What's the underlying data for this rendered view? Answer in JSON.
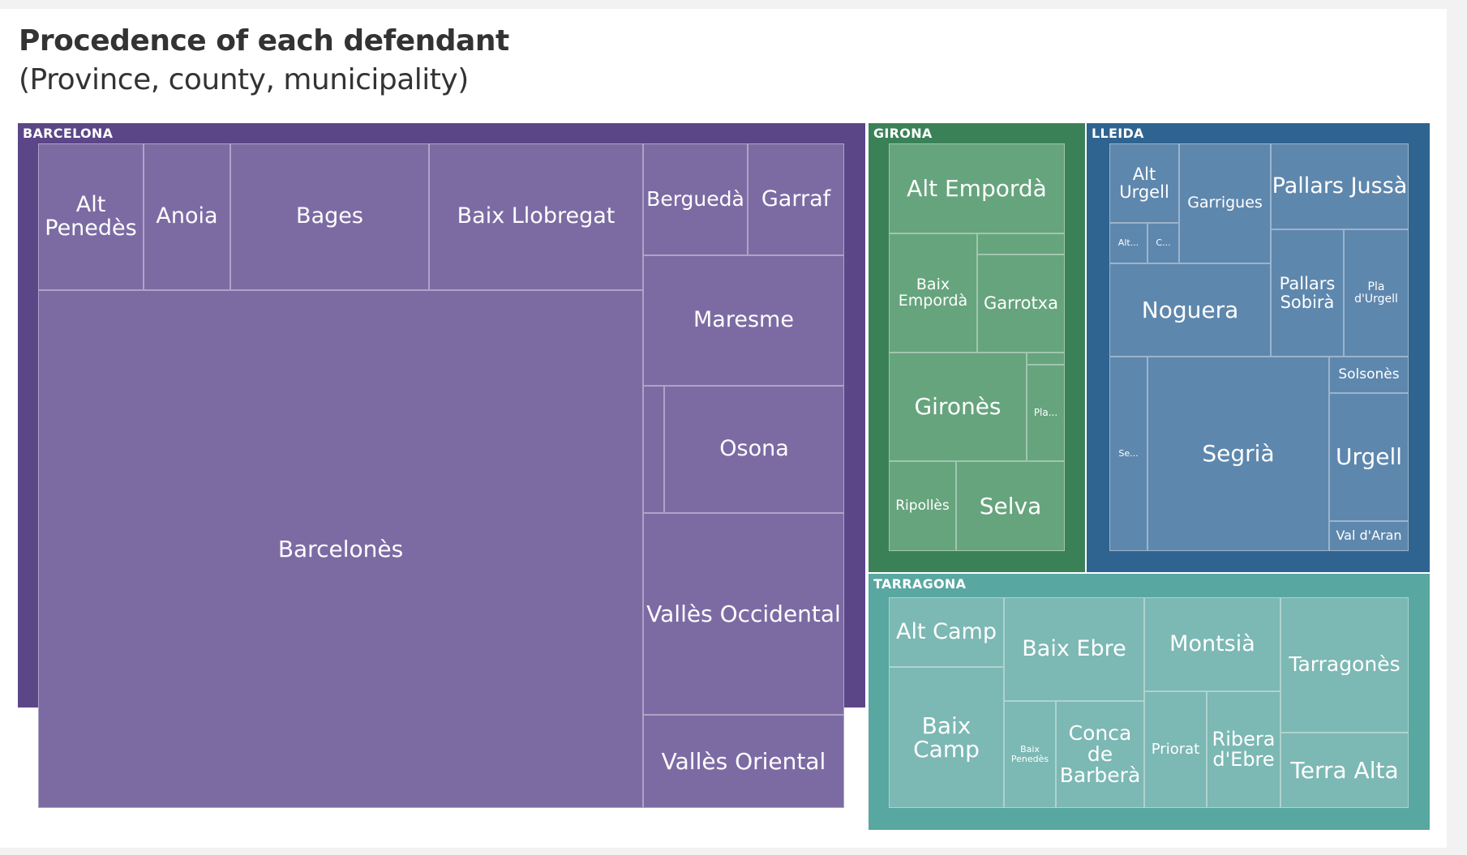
{
  "title": "Procedence of each defendant",
  "subtitle": "(Province, county, municipality)",
  "chart_data": {
    "type": "treemap",
    "title": "Procedence of each defendant",
    "subtitle": "(Province, county, municipality)",
    "provinces": [
      {
        "name": "BARCELONA",
        "color": "#5b4688",
        "tile_color": "#7c6ba3",
        "counties": [
          {
            "label": "Alt Penedès"
          },
          {
            "label": "Anoia"
          },
          {
            "label": "Bages"
          },
          {
            "label": "Baix Llobregat"
          },
          {
            "label": "Berguedà"
          },
          {
            "label": "Garraf"
          },
          {
            "label": "Maresme"
          },
          {
            "label": ""
          },
          {
            "label": "Osona"
          },
          {
            "label": "Barcelonès"
          },
          {
            "label": "Vallès Occidental"
          },
          {
            "label": "Vallès Oriental"
          }
        ]
      },
      {
        "name": "GIRONA",
        "color": "#3b8158",
        "tile_color": "#66a47d",
        "counties": [
          {
            "label": "Alt Empordà"
          },
          {
            "label": "Baix Empordà"
          },
          {
            "label": ""
          },
          {
            "label": "Garrotxa"
          },
          {
            "label": "Gironès"
          },
          {
            "label": ""
          },
          {
            "label": "Pla..."
          },
          {
            "label": "Ripollès"
          },
          {
            "label": "Selva"
          }
        ]
      },
      {
        "name": "LLEIDA",
        "color": "#2f6490",
        "tile_color": "#5e87ad",
        "counties": [
          {
            "label": "Alt Urgell"
          },
          {
            "label": "Alt..."
          },
          {
            "label": "C..."
          },
          {
            "label": "Garrigues"
          },
          {
            "label": "Pallars Jussà"
          },
          {
            "label": "Noguera"
          },
          {
            "label": "Pallars Sobirà"
          },
          {
            "label": "Pla d'Urgell"
          },
          {
            "label": "Se..."
          },
          {
            "label": "Segrià"
          },
          {
            "label": "Solsonès"
          },
          {
            "label": "Urgell"
          },
          {
            "label": "Val d'Aran"
          }
        ]
      },
      {
        "name": "TARRAGONA",
        "color": "#58a7a1",
        "tile_color": "#7cb8b4",
        "counties": [
          {
            "label": "Alt Camp"
          },
          {
            "label": "Baix Camp"
          },
          {
            "label": "Baix Ebre"
          },
          {
            "label": "Baix Penedès"
          },
          {
            "label": "Conca de Barberà"
          },
          {
            "label": "Montsià"
          },
          {
            "label": "Priorat"
          },
          {
            "label": "Ribera d'Ebre"
          },
          {
            "label": "Tarragonès"
          },
          {
            "label": "Terra Alta"
          }
        ]
      }
    ]
  }
}
